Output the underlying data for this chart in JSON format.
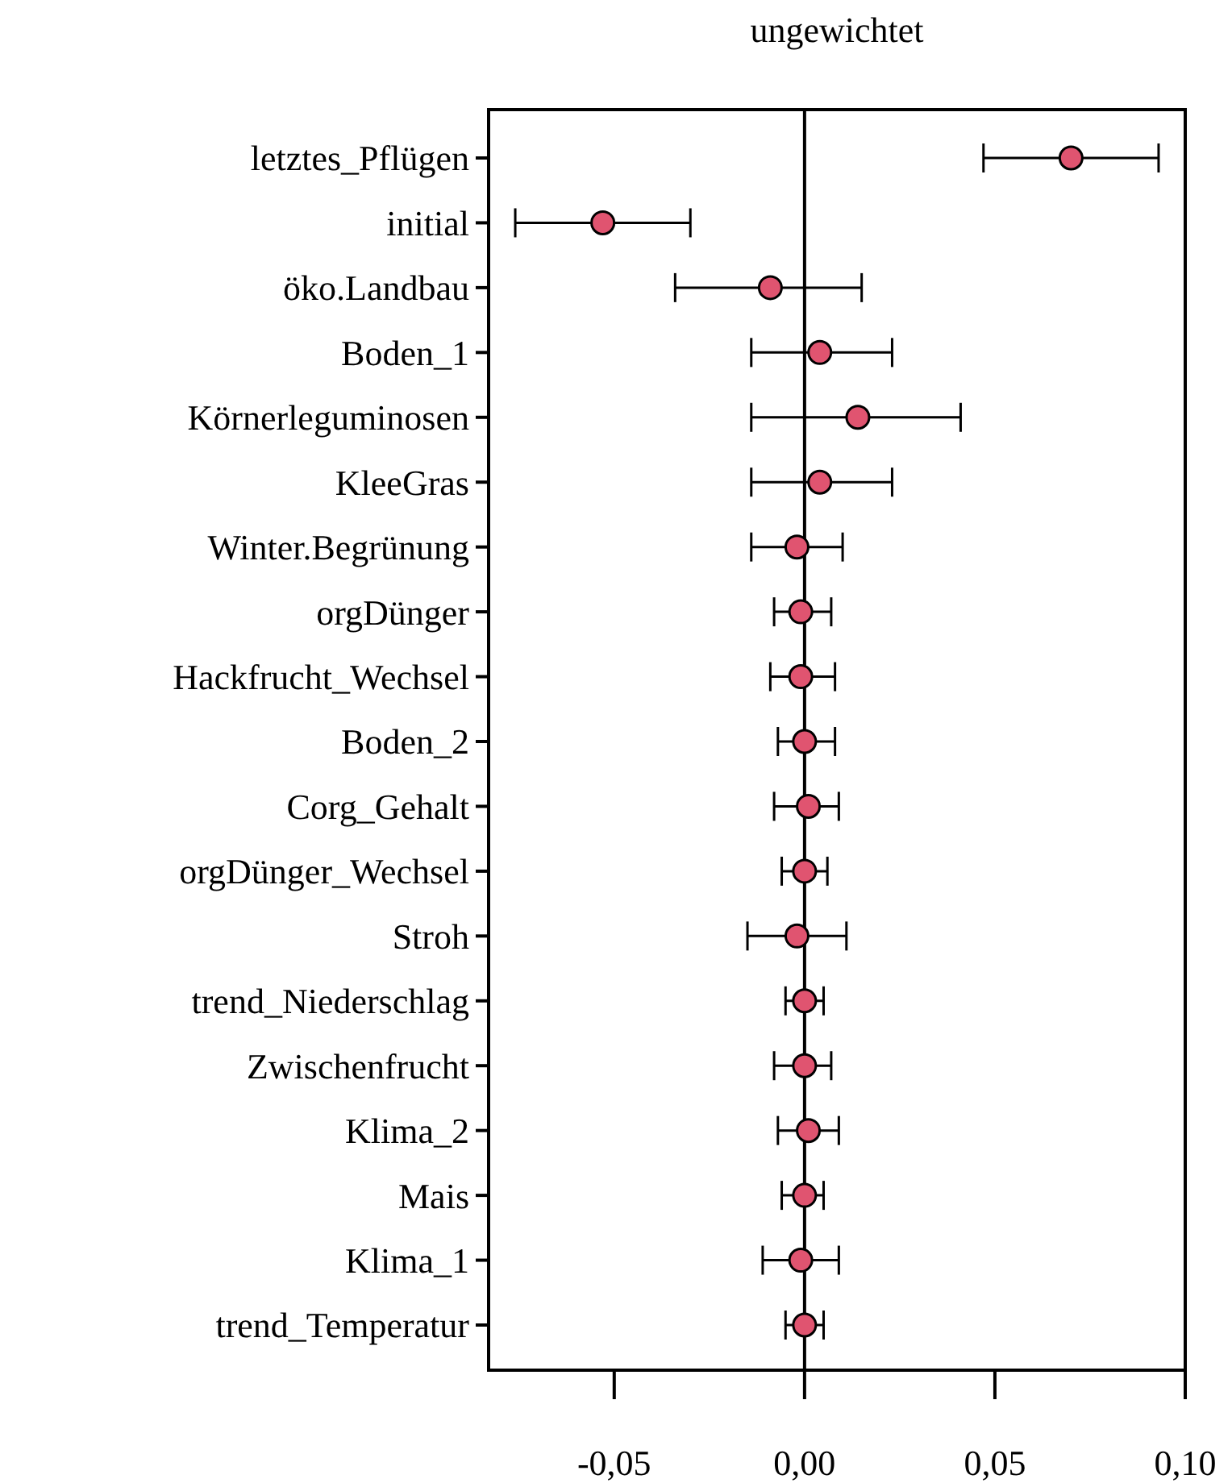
{
  "chart_data": {
    "type": "scatter",
    "title": "ungewichtet",
    "orientation": "horizontal",
    "categories": [
      "letztes_Pflügen",
      "initial",
      "öko.Landbau",
      "Boden_1",
      "Körnerleguminosen",
      "KleeGras",
      "Winter.Begrünung",
      "orgDünger",
      "Hackfrucht_Wechsel",
      "Boden_2",
      "Corg_Gehalt",
      "orgDünger_Wechsel",
      "Stroh",
      "trend_Niederschlag",
      "Zwischenfrucht",
      "Klima_2",
      "Mais",
      "Klima_1",
      "trend_Temperatur"
    ],
    "values": [
      0.07,
      -0.053,
      -0.009,
      0.004,
      0.014,
      0.004,
      -0.002,
      -0.001,
      -0.001,
      0.0,
      0.001,
      0.0,
      -0.002,
      0.0,
      0.0,
      0.001,
      0.0,
      -0.001,
      0.0
    ],
    "errors": [
      [
        0.047,
        0.093
      ],
      [
        -0.076,
        -0.03
      ],
      [
        -0.034,
        0.015
      ],
      [
        -0.014,
        0.023
      ],
      [
        -0.014,
        0.041
      ],
      [
        -0.014,
        0.023
      ],
      [
        -0.014,
        0.01
      ],
      [
        -0.008,
        0.007
      ],
      [
        -0.009,
        0.008
      ],
      [
        -0.007,
        0.008
      ],
      [
        -0.008,
        0.009
      ],
      [
        -0.006,
        0.006
      ],
      [
        -0.015,
        0.011
      ],
      [
        -0.005,
        0.005
      ],
      [
        -0.008,
        0.007
      ],
      [
        -0.007,
        0.009
      ],
      [
        -0.006,
        0.005
      ],
      [
        -0.011,
        0.009
      ],
      [
        -0.005,
        0.005
      ]
    ],
    "color": "#e05470",
    "marker": "circle",
    "xlim": [
      -0.083,
      0.1
    ],
    "xticks": [
      {
        "value": -0.05,
        "label": "-0,05"
      },
      {
        "value": 0,
        "label": "0,00"
      },
      {
        "value": 0.05,
        "label": "0,05"
      },
      {
        "value": 0.1,
        "label": "0,10"
      }
    ],
    "ref_lines": [
      {
        "axis": "x",
        "value": 0,
        "color": "#000000"
      }
    ],
    "grid": false
  }
}
